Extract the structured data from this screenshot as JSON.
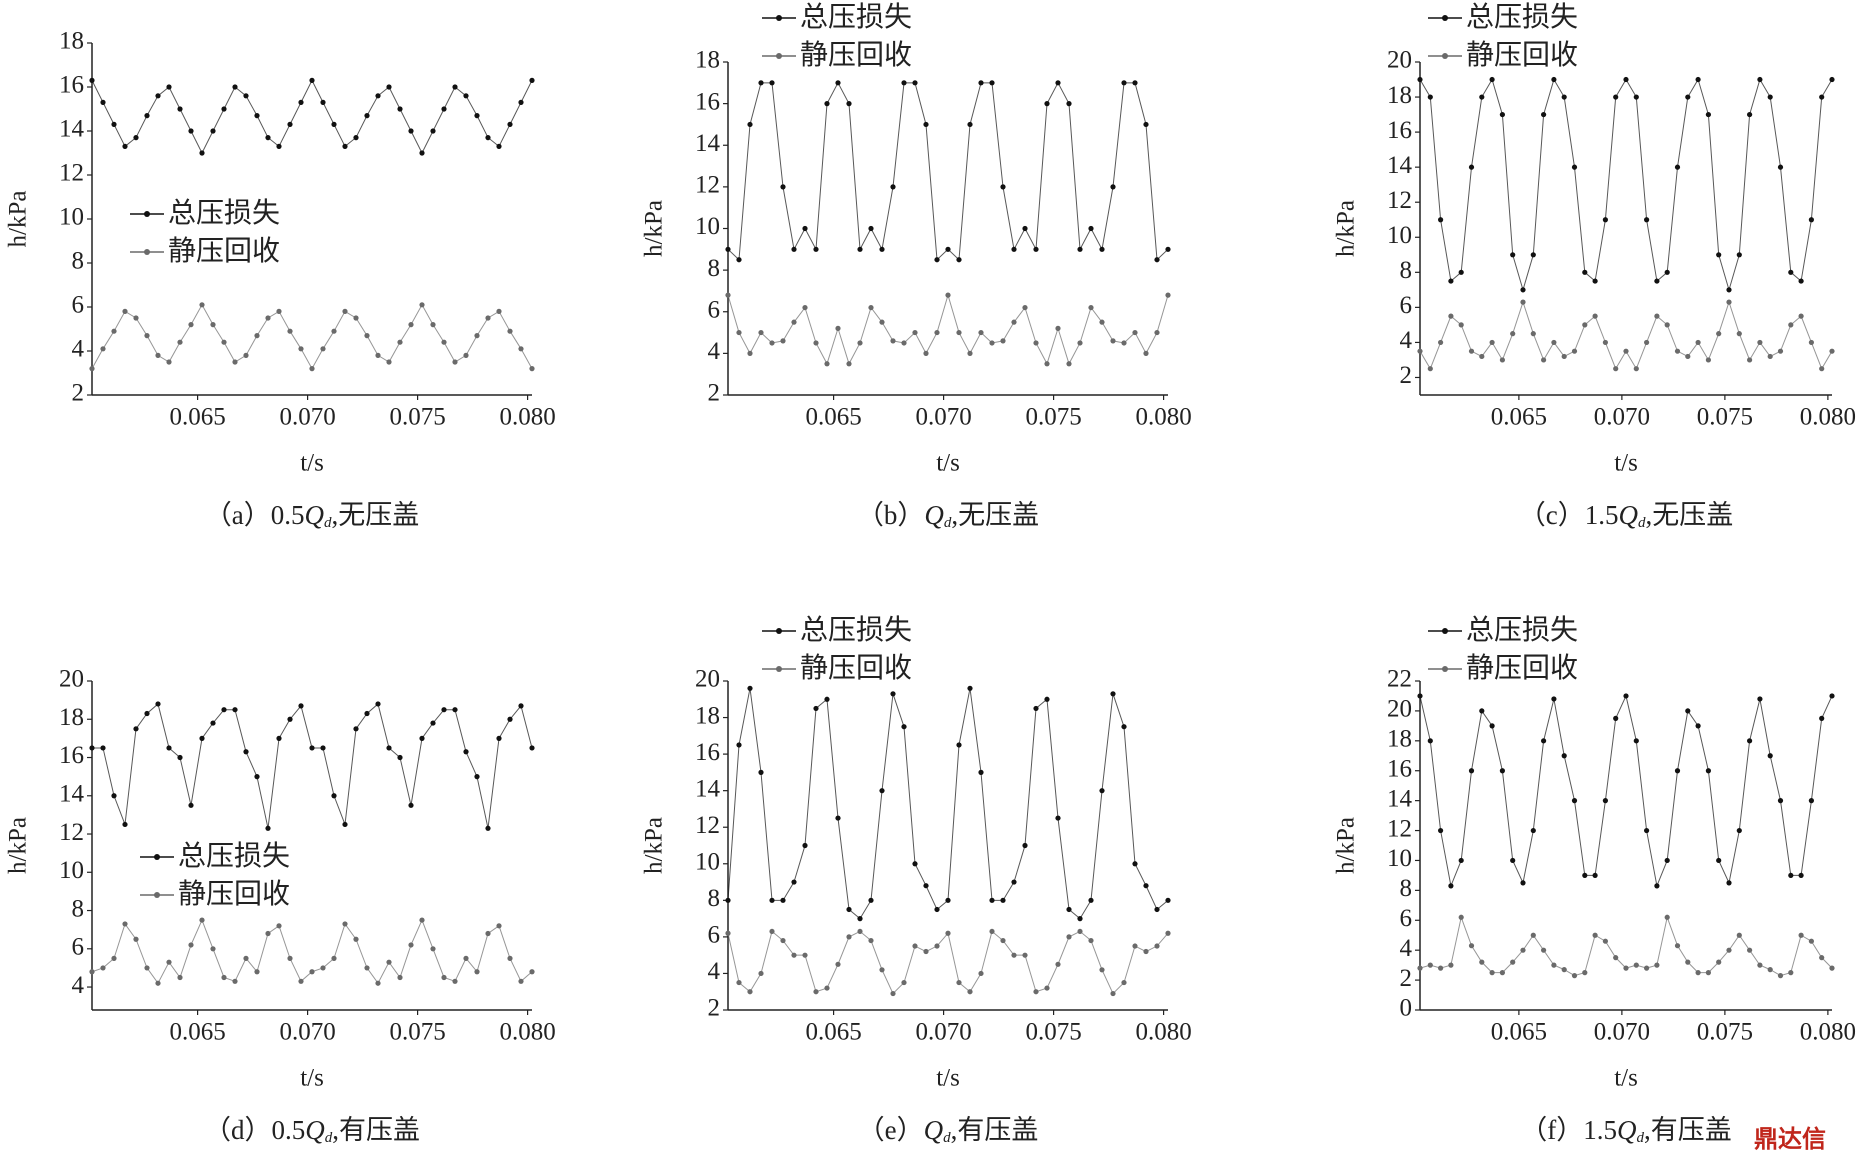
{
  "chart_data": [
    {
      "type": "line",
      "caption": {
        "prefix": "（a）0.5",
        "symbol": "Q",
        "subscript": "d",
        "suffix": ",无压盖"
      },
      "xlabel": "t/s",
      "ylabel": "h/kPa",
      "x": [
        0.0602,
        0.0607,
        0.0612,
        0.0617,
        0.0622,
        0.0627,
        0.0632,
        0.0637,
        0.0642,
        0.0647,
        0.0652,
        0.0657,
        0.0662,
        0.0667,
        0.0672,
        0.0677,
        0.0682,
        0.0687,
        0.0692,
        0.0697,
        0.0702,
        0.0707,
        0.0712,
        0.0717,
        0.0722,
        0.0727,
        0.0732,
        0.0737,
        0.0742,
        0.0747,
        0.0752,
        0.0757,
        0.0762,
        0.0767,
        0.0772,
        0.0777,
        0.0782,
        0.0787,
        0.0792,
        0.0797,
        0.0802
      ],
      "xlim": [
        0.0602,
        0.0802
      ],
      "xticks": [
        0.065,
        {
          "value": 0.07,
          "label": "0.070"
        },
        0.075,
        {
          "value": 0.08,
          "label": "0.080"
        }
      ],
      "ylim": [
        2,
        18
      ],
      "yticks": [
        2,
        4,
        6,
        8,
        10,
        12,
        14,
        16,
        18
      ],
      "series": [
        {
          "name": "总压损失",
          "color": "#111111",
          "values": [
            16.3,
            15.3,
            14.3,
            13.3,
            13.7,
            14.7,
            15.6,
            16.0,
            15.0,
            14.0,
            13.0,
            14.0,
            15.0,
            16.0,
            15.6,
            14.7,
            13.7,
            13.3,
            14.3,
            15.3,
            16.3,
            15.3,
            14.3,
            13.3,
            13.7,
            14.7,
            15.6,
            16.0,
            15.0,
            14.0,
            13.0,
            14.0,
            15.0,
            16.0,
            15.6,
            14.7,
            13.7,
            13.3,
            14.3,
            15.3,
            16.3
          ]
        },
        {
          "name": "静压回收",
          "color": "#6a6a6a",
          "values": [
            3.2,
            4.1,
            4.9,
            5.8,
            5.5,
            4.7,
            3.8,
            3.5,
            4.4,
            5.2,
            6.1,
            5.2,
            4.4,
            3.5,
            3.8,
            4.7,
            5.5,
            5.8,
            4.9,
            4.1,
            3.2,
            4.1,
            4.9,
            5.8,
            5.5,
            4.7,
            3.8,
            3.5,
            4.4,
            5.2,
            6.1,
            5.2,
            4.4,
            3.5,
            3.8,
            4.7,
            5.5,
            5.8,
            4.9,
            4.1,
            3.2
          ]
        }
      ]
    },
    {
      "type": "line",
      "caption": {
        "prefix": "（b）",
        "symbol": "Q",
        "subscript": "d",
        "suffix": ",无压盖"
      },
      "xlabel": "t/s",
      "ylabel": "h/kPa",
      "x": [
        0.0602,
        0.0607,
        0.0612,
        0.0617,
        0.0622,
        0.0627,
        0.0632,
        0.0637,
        0.0642,
        0.0647,
        0.0652,
        0.0657,
        0.0662,
        0.0667,
        0.0672,
        0.0677,
        0.0682,
        0.0687,
        0.0692,
        0.0697,
        0.0702,
        0.0707,
        0.0712,
        0.0717,
        0.0722,
        0.0727,
        0.0732,
        0.0737,
        0.0742,
        0.0747,
        0.0752,
        0.0757,
        0.0762,
        0.0767,
        0.0772,
        0.0777,
        0.0782,
        0.0787,
        0.0792,
        0.0797,
        0.0802
      ],
      "xlim": [
        0.0602,
        0.0802
      ],
      "xticks": [
        0.065,
        {
          "value": 0.07,
          "label": "0.070"
        },
        0.075,
        {
          "value": 0.08,
          "label": "0.080"
        }
      ],
      "ylim": [
        2,
        18
      ],
      "yticks": [
        2,
        4,
        6,
        8,
        10,
        12,
        14,
        16,
        18
      ],
      "series": [
        {
          "name": "总压损失",
          "color": "#111111",
          "values": [
            9,
            8.5,
            15,
            17,
            17,
            12,
            9,
            10,
            9,
            16,
            17,
            16,
            9,
            10,
            9,
            12,
            17,
            17,
            15,
            8.5,
            9,
            8.5,
            15,
            17,
            17,
            12,
            9,
            10,
            9,
            16,
            17,
            16,
            9,
            10,
            9,
            12,
            17,
            17,
            15,
            8.5,
            9
          ]
        },
        {
          "name": "静压回收",
          "color": "#6a6a6a",
          "values": [
            6.8,
            5,
            4,
            5,
            4.5,
            4.6,
            5.5,
            6.2,
            4.5,
            3.5,
            5.2,
            3.5,
            4.5,
            6.2,
            5.5,
            4.6,
            4.5,
            5,
            4,
            5,
            6.8,
            5,
            4,
            5,
            4.5,
            4.6,
            5.5,
            6.2,
            4.5,
            3.5,
            5.2,
            3.5,
            4.5,
            6.2,
            5.5,
            4.6,
            4.5,
            5,
            4,
            5,
            6.8
          ]
        }
      ]
    },
    {
      "type": "line",
      "caption": {
        "prefix": "（c）1.5",
        "symbol": "Q",
        "subscript": "d",
        "suffix": ",无压盖"
      },
      "xlabel": "t/s",
      "ylabel": "h/kPa",
      "x": [
        0.0602,
        0.0607,
        0.0612,
        0.0617,
        0.0622,
        0.0627,
        0.0632,
        0.0637,
        0.0642,
        0.0647,
        0.0652,
        0.0657,
        0.0662,
        0.0667,
        0.0672,
        0.0677,
        0.0682,
        0.0687,
        0.0692,
        0.0697,
        0.0702,
        0.0707,
        0.0712,
        0.0717,
        0.0722,
        0.0727,
        0.0732,
        0.0737,
        0.0742,
        0.0747,
        0.0752,
        0.0757,
        0.0762,
        0.0767,
        0.0772,
        0.0777,
        0.0782,
        0.0787,
        0.0792,
        0.0797,
        0.0802
      ],
      "xlim": [
        0.0602,
        0.0802
      ],
      "xticks": [
        0.065,
        {
          "value": 0.07,
          "label": "0.070"
        },
        0.075,
        {
          "value": 0.08,
          "label": "0.080"
        }
      ],
      "ylim": [
        1,
        20
      ],
      "yticks": [
        2,
        4,
        6,
        8,
        10,
        12,
        14,
        16,
        18,
        20
      ],
      "series": [
        {
          "name": "总压损失",
          "color": "#111111",
          "values": [
            19,
            18,
            11,
            7.5,
            8,
            14,
            18,
            19,
            17,
            9,
            7,
            9,
            17,
            19,
            18,
            14,
            8,
            7.5,
            11,
            18,
            19,
            18,
            11,
            7.5,
            8,
            14,
            18,
            19,
            17,
            9,
            7,
            9,
            17,
            19,
            18,
            14,
            8,
            7.5,
            11,
            18,
            19
          ]
        },
        {
          "name": "静压回收",
          "color": "#6a6a6a",
          "values": [
            3.5,
            2.5,
            4,
            5.5,
            5,
            3.5,
            3.2,
            4,
            3,
            4.5,
            6.3,
            4.5,
            3,
            4,
            3.2,
            3.5,
            5,
            5.5,
            4,
            2.5,
            3.5,
            2.5,
            4,
            5.5,
            5,
            3.5,
            3.2,
            4,
            3,
            4.5,
            6.3,
            4.5,
            3,
            4,
            3.2,
            3.5,
            5,
            5.5,
            4,
            2.5,
            3.5
          ]
        }
      ]
    },
    {
      "type": "line",
      "caption": {
        "prefix": "（d）0.5",
        "symbol": "Q",
        "subscript": "d",
        "suffix": ",有压盖"
      },
      "xlabel": "t/s",
      "ylabel": "h/kPa",
      "x": [
        0.0602,
        0.0607,
        0.0612,
        0.0617,
        0.0622,
        0.0627,
        0.0632,
        0.0637,
        0.0642,
        0.0647,
        0.0652,
        0.0657,
        0.0662,
        0.0667,
        0.0672,
        0.0677,
        0.0682,
        0.0687,
        0.0692,
        0.0697,
        0.0702,
        0.0707,
        0.0712,
        0.0717,
        0.0722,
        0.0727,
        0.0732,
        0.0737,
        0.0742,
        0.0747,
        0.0752,
        0.0757,
        0.0762,
        0.0767,
        0.0772,
        0.0777,
        0.0782,
        0.0787,
        0.0792,
        0.0797,
        0.0802
      ],
      "xlim": [
        0.0602,
        0.0802
      ],
      "xticks": [
        0.065,
        {
          "value": 0.07,
          "label": "0.070"
        },
        0.075,
        {
          "value": 0.08,
          "label": "0.080"
        }
      ],
      "ylim": [
        2.8,
        20
      ],
      "yticks": [
        4,
        6,
        8,
        10,
        12,
        14,
        16,
        18,
        20
      ],
      "series": [
        {
          "name": "总压损失",
          "color": "#111111",
          "values": [
            16.5,
            16.5,
            14,
            12.5,
            17.5,
            18.3,
            18.8,
            16.5,
            16,
            13.5,
            17,
            17.8,
            18.5,
            18.5,
            16.3,
            15,
            12.3,
            17,
            18,
            18.7,
            16.5,
            16.5,
            14,
            12.5,
            17.5,
            18.3,
            18.8,
            16.5,
            16,
            13.5,
            17,
            17.8,
            18.5,
            18.5,
            16.3,
            15,
            12.3,
            17,
            18,
            18.7,
            16.5
          ]
        },
        {
          "name": "静压回收",
          "color": "#6a6a6a",
          "values": [
            4.8,
            5,
            5.5,
            7.3,
            6.5,
            5,
            4.2,
            5.3,
            4.5,
            6.2,
            7.5,
            6,
            4.5,
            4.3,
            5.5,
            4.8,
            6.8,
            7.2,
            5.5,
            4.3,
            4.8,
            5,
            5.5,
            7.3,
            6.5,
            5,
            4.2,
            5.3,
            4.5,
            6.2,
            7.5,
            6,
            4.5,
            4.3,
            5.5,
            4.8,
            6.8,
            7.2,
            5.5,
            4.3,
            4.8
          ]
        }
      ]
    },
    {
      "type": "line",
      "caption": {
        "prefix": "（e）",
        "symbol": "Q",
        "subscript": "d",
        "suffix": ",有压盖"
      },
      "xlabel": "t/s",
      "ylabel": "h/kPa",
      "x": [
        0.0602,
        0.0607,
        0.0612,
        0.0617,
        0.0622,
        0.0627,
        0.0632,
        0.0637,
        0.0642,
        0.0647,
        0.0652,
        0.0657,
        0.0662,
        0.0667,
        0.0672,
        0.0677,
        0.0682,
        0.0687,
        0.0692,
        0.0697,
        0.0702,
        0.0707,
        0.0712,
        0.0717,
        0.0722,
        0.0727,
        0.0732,
        0.0737,
        0.0742,
        0.0747,
        0.0752,
        0.0757,
        0.0762,
        0.0767,
        0.0772,
        0.0777,
        0.0782,
        0.0787,
        0.0792,
        0.0797,
        0.0802
      ],
      "xlim": [
        0.0602,
        0.0802
      ],
      "xticks": [
        0.065,
        {
          "value": 0.07,
          "label": "0.070"
        },
        0.075,
        {
          "value": 0.08,
          "label": "0.080"
        }
      ],
      "ylim": [
        2,
        20
      ],
      "yticks": [
        2,
        4,
        6,
        8,
        10,
        12,
        14,
        16,
        18,
        20
      ],
      "series": [
        {
          "name": "总压损失",
          "color": "#111111",
          "values": [
            8,
            16.5,
            19.6,
            15,
            8,
            8,
            9,
            11,
            18.5,
            19,
            12.5,
            7.5,
            7,
            8,
            14,
            19.3,
            17.5,
            10,
            8.8,
            7.5,
            8,
            16.5,
            19.6,
            15,
            8,
            8,
            9,
            11,
            18.5,
            19,
            12.5,
            7.5,
            7,
            8,
            14,
            19.3,
            17.5,
            10,
            8.8,
            7.5,
            8
          ]
        },
        {
          "name": "静压回收",
          "color": "#6a6a6a",
          "values": [
            6.2,
            3.5,
            3,
            4,
            6.3,
            5.8,
            5,
            5,
            3,
            3.2,
            4.5,
            6,
            6.3,
            5.8,
            4.2,
            2.9,
            3.5,
            5.5,
            5.2,
            5.5,
            6.2,
            3.5,
            3,
            4,
            6.3,
            5.8,
            5,
            5,
            3,
            3.2,
            4.5,
            6,
            6.3,
            5.8,
            4.2,
            2.9,
            3.5,
            5.5,
            5.2,
            5.5,
            6.2
          ]
        }
      ]
    },
    {
      "type": "line",
      "caption": {
        "prefix": "（f）1.5",
        "symbol": "Q",
        "subscript": "d",
        "suffix": ",有压盖"
      },
      "xlabel": "t/s",
      "ylabel": "h/kPa",
      "x": [
        0.0602,
        0.0607,
        0.0612,
        0.0617,
        0.0622,
        0.0627,
        0.0632,
        0.0637,
        0.0642,
        0.0647,
        0.0652,
        0.0657,
        0.0662,
        0.0667,
        0.0672,
        0.0677,
        0.0682,
        0.0687,
        0.0692,
        0.0697,
        0.0702,
        0.0707,
        0.0712,
        0.0717,
        0.0722,
        0.0727,
        0.0732,
        0.0737,
        0.0742,
        0.0747,
        0.0752,
        0.0757,
        0.0762,
        0.0767,
        0.0772,
        0.0777,
        0.0782,
        0.0787,
        0.0792,
        0.0797,
        0.0802
      ],
      "xlim": [
        0.0602,
        0.0802
      ],
      "xticks": [
        0.065,
        {
          "value": 0.07,
          "label": "0.070"
        },
        0.075,
        {
          "value": 0.08,
          "label": "0.080"
        }
      ],
      "ylim": [
        0,
        22
      ],
      "yticks": [
        0,
        2,
        4,
        6,
        8,
        10,
        12,
        14,
        16,
        18,
        20,
        22
      ],
      "series": [
        {
          "name": "总压损失",
          "color": "#111111",
          "values": [
            21,
            18,
            12,
            8.3,
            10,
            16,
            20,
            19,
            16,
            10,
            8.5,
            12,
            18,
            20.8,
            17,
            14,
            9,
            9,
            14,
            19.5,
            21,
            18,
            12,
            8.3,
            10,
            16,
            20,
            19,
            16,
            10,
            8.5,
            12,
            18,
            20.8,
            17,
            14,
            9,
            9,
            14,
            19.5,
            21
          ]
        },
        {
          "name": "静压回收",
          "color": "#6a6a6a",
          "values": [
            2.8,
            3,
            2.8,
            3,
            6.2,
            4.3,
            3.2,
            2.5,
            2.5,
            3.2,
            4,
            5,
            4,
            3,
            2.7,
            2.3,
            2.5,
            5,
            4.6,
            3.5,
            2.8,
            3,
            2.8,
            3,
            6.2,
            4.3,
            3.2,
            2.5,
            2.5,
            3.2,
            4,
            5,
            4,
            3,
            2.7,
            2.3,
            2.5,
            5,
            4.6,
            3.5,
            2.8
          ]
        }
      ]
    }
  ],
  "watermark": "鼎达信"
}
